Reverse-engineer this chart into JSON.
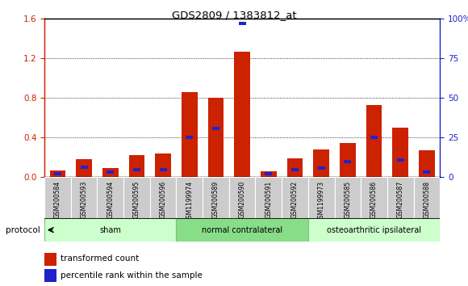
{
  "title": "GDS2809 / 1383812_at",
  "samples": [
    "GSM200584",
    "GSM200593",
    "GSM200594",
    "GSM200595",
    "GSM200596",
    "GSM1199974",
    "GSM200589",
    "GSM200590",
    "GSM200591",
    "GSM200592",
    "GSM1199973",
    "GSM200585",
    "GSM200586",
    "GSM200587",
    "GSM200588"
  ],
  "red_values": [
    0.07,
    0.18,
    0.09,
    0.22,
    0.24,
    0.86,
    0.8,
    1.27,
    0.06,
    0.19,
    0.28,
    0.35,
    0.73,
    0.5,
    0.27
  ],
  "blue_pct": [
    2.5,
    6.5,
    3.5,
    5.0,
    5.0,
    25.0,
    31.0,
    97.0,
    2.5,
    5.0,
    6.0,
    10.0,
    25.0,
    11.0,
    3.5
  ],
  "groups": [
    {
      "label": "sham",
      "start": 0,
      "end": 5,
      "color": "#ccffcc"
    },
    {
      "label": "normal contralateral",
      "start": 5,
      "end": 10,
      "color": "#88dd88"
    },
    {
      "label": "osteoarthritic ipsilateral",
      "start": 10,
      "end": 15,
      "color": "#ccffcc"
    }
  ],
  "ylim_left": [
    0,
    1.6
  ],
  "ylim_right": [
    0,
    100
  ],
  "yticks_left": [
    0,
    0.4,
    0.8,
    1.2,
    1.6
  ],
  "yticks_right": [
    0,
    25,
    50,
    75,
    100
  ],
  "bar_width": 0.6,
  "red_color": "#cc2200",
  "blue_color": "#2222cc",
  "bg_color": "#ffffff",
  "sample_bg_color": "#cccccc",
  "protocol_label": "protocol",
  "legend_items": [
    "transformed count",
    "percentile rank within the sample"
  ]
}
